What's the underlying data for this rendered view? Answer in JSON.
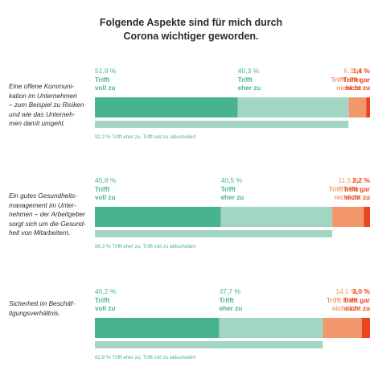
{
  "title_lines": [
    "Folgende Aspekte sind für mich durch",
    "Corona wichtiger geworden."
  ],
  "colors": {
    "voll": "#48b48e",
    "eher": "#a3d6c2",
    "eher_nicht": "#f2966b",
    "gar_nicht": "#e8461f",
    "accum": "#a3d6c2",
    "green_text": "#48b48e",
    "orange_text": "#f2966b",
    "red_text": "#e8461f"
  },
  "chart_data": {
    "type": "bar",
    "orientation": "horizontal-stacked",
    "title": "Folgende Aspekte sind für mich durch Corona wichtiger geworden.",
    "xlim": [
      0,
      100
    ],
    "unit": "%",
    "series": [
      {
        "name": "Trifft voll zu",
        "label_lines": [
          "Trifft",
          "voll zu"
        ],
        "values": [
          51.9,
          45.8,
          45.2
        ],
        "labels": [
          "51,9 %",
          "45,8 %",
          "45,2 %"
        ]
      },
      {
        "name": "Trifft eher zu",
        "label_lines": [
          "Trifft",
          "eher zu"
        ],
        "values": [
          40.3,
          40.5,
          37.7
        ],
        "labels": [
          "40,3 %",
          "40,5 %",
          "37,7 %"
        ]
      },
      {
        "name": "Trifft eher nicht zu",
        "label_lines": [
          "Trifft eher",
          "nicht zu"
        ],
        "values": [
          6.3,
          11.5,
          14.1
        ],
        "labels": [
          "6,3 %",
          "11,5 %",
          "14,1 %"
        ]
      },
      {
        "name": "Trifft gar nicht zu",
        "label_lines": [
          "Trifft gar",
          "nicht zu"
        ],
        "values": [
          1.4,
          2.2,
          3.0
        ],
        "labels": [
          "1,4 %",
          "2,2 %",
          "3,0 %"
        ]
      }
    ],
    "categories": [
      {
        "text": "Eine offene Kommuni-\nkation im Unternehmen\n– zum Beispiel zu Risiken\nund wie das Unterneh-\nmen damit umgeht.",
        "accumulated": 92.2,
        "accumulated_label": "92,2 % Trifft eher zu, Trifft voll zu akkumuliert"
      },
      {
        "text": "Ein gutes Gesundheits-\nmanagement im Unter-\nnehmen – der Arbeitgeber\nsorgt sich um die Gesund-\nheit von Mitarbeitern.",
        "accumulated": 86.3,
        "accumulated_label": "86,3 % Trifft eher zu, Trifft voll zu akkumuliert"
      },
      {
        "text": "Sicherheit im Beschäf-\ntigungsverhältnis.",
        "accumulated": 82.9,
        "accumulated_label": "82,9 % Trifft eher zu, Trifft voll zu akkumuliert"
      }
    ]
  }
}
